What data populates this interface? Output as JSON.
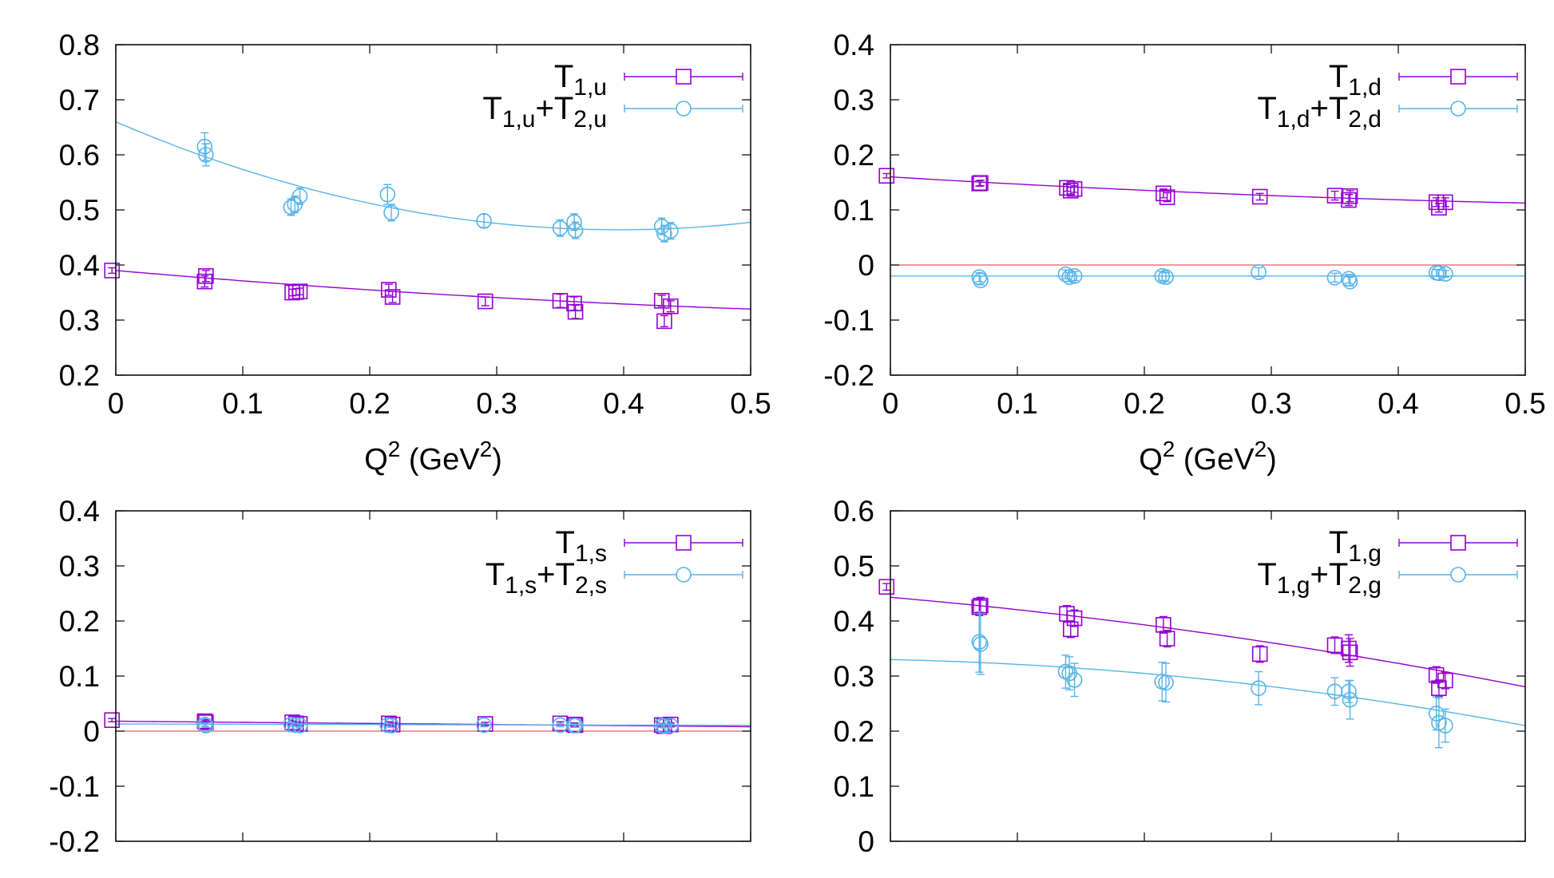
{
  "colors": {
    "t1": "#9400d3",
    "t12": "#56b4e9",
    "zero_line": "#e06060",
    "frame": "#000000"
  },
  "chart_data": [
    {
      "type": "scatter",
      "id": "u",
      "xlim": [
        0,
        0.5
      ],
      "ylim": [
        0.2,
        0.8
      ],
      "yticks": [
        "0.2",
        "0.3",
        "0.4",
        "0.5",
        "0.6",
        "0.7",
        "0.8"
      ],
      "xticks": [
        "0",
        "0.1",
        "0.2",
        "0.3",
        "0.4",
        "0.5"
      ],
      "show_xticks": true,
      "xlabel": {
        "base": "Q",
        "sup1": "2",
        "mid": " (GeV",
        "sup2": "2",
        "end": ")"
      },
      "zero_line": false,
      "legend": [
        {
          "base": "T",
          "sub": "1,u",
          "plus": "",
          "base2": "",
          "sub2": ""
        },
        {
          "base": "T",
          "sub": "1,u",
          "plus": "+",
          "base2": "T",
          "sub2": "2,u"
        }
      ],
      "series": [
        {
          "name": "T1,u",
          "fit": [
            0.39,
            -0.2,
            0.12
          ],
          "points": [
            [
              -0.003,
              0.39,
              0.005
            ],
            [
              0.07,
              0.37,
              0.01
            ],
            [
              0.071,
              0.38,
              0.01
            ],
            [
              0.139,
              0.35,
              0.006
            ],
            [
              0.142,
              0.351,
              0.006
            ],
            [
              0.145,
              0.352,
              0.006
            ],
            [
              0.215,
              0.355,
              0.01
            ],
            [
              0.218,
              0.342,
              0.01
            ],
            [
              0.291,
              0.334,
              0.008
            ],
            [
              0.35,
              0.335,
              0.012
            ],
            [
              0.361,
              0.33,
              0.012
            ],
            [
              0.362,
              0.315,
              0.012
            ],
            [
              0.43,
              0.335,
              0.01
            ],
            [
              0.432,
              0.298,
              0.01
            ],
            [
              0.437,
              0.325,
              0.01
            ]
          ]
        },
        {
          "name": "T1,u+T2,u",
          "fit": [
            0.66,
            -0.99,
            1.25
          ],
          "points": [
            [
              0.07,
              0.615,
              0.025
            ],
            [
              0.071,
              0.6,
              0.02
            ],
            [
              0.138,
              0.505,
              0.015
            ],
            [
              0.141,
              0.51,
              0.015
            ],
            [
              0.145,
              0.525,
              0.015
            ],
            [
              0.214,
              0.528,
              0.018
            ],
            [
              0.217,
              0.495,
              0.015
            ],
            [
              0.29,
              0.48,
              0.012
            ],
            [
              0.35,
              0.467,
              0.015
            ],
            [
              0.361,
              0.478,
              0.015
            ],
            [
              0.362,
              0.463,
              0.015
            ],
            [
              0.43,
              0.47,
              0.015
            ],
            [
              0.432,
              0.457,
              0.015
            ],
            [
              0.437,
              0.462,
              0.015
            ]
          ]
        }
      ]
    },
    {
      "type": "scatter",
      "id": "d",
      "xlim": [
        0,
        0.5
      ],
      "ylim": [
        -0.2,
        0.4
      ],
      "yticks": [
        "-0.2",
        "-0.1",
        "0",
        "0.1",
        "0.2",
        "0.3",
        "0.4"
      ],
      "xticks": [
        "0",
        "0.1",
        "0.2",
        "0.3",
        "0.4",
        "0.5"
      ],
      "show_xticks": true,
      "xlabel": {
        "base": "Q",
        "sup1": "2",
        "mid": " (GeV",
        "sup2": "2",
        "end": ")"
      },
      "zero_line": true,
      "legend": [
        {
          "base": "T",
          "sub": "1,d",
          "plus": "",
          "base2": "",
          "sub2": ""
        },
        {
          "base": "T",
          "sub": "1,d",
          "plus": "+",
          "base2": "T",
          "sub2": "2,d"
        }
      ],
      "series": [
        {
          "name": "T1,d",
          "fit": [
            0.16,
            -0.14,
            0.09
          ],
          "points": [
            [
              -0.003,
              0.162,
              0.004
            ],
            [
              0.07,
              0.148,
              0.005
            ],
            [
              0.071,
              0.149,
              0.005
            ],
            [
              0.139,
              0.14,
              0.006
            ],
            [
              0.142,
              0.135,
              0.006
            ],
            [
              0.145,
              0.138,
              0.006
            ],
            [
              0.215,
              0.13,
              0.008
            ],
            [
              0.218,
              0.123,
              0.008
            ],
            [
              0.291,
              0.124,
              0.006
            ],
            [
              0.35,
              0.126,
              0.008
            ],
            [
              0.361,
              0.118,
              0.01
            ],
            [
              0.362,
              0.125,
              0.01
            ],
            [
              0.43,
              0.114,
              0.008
            ],
            [
              0.432,
              0.104,
              0.008
            ],
            [
              0.437,
              0.114,
              0.008
            ]
          ]
        },
        {
          "name": "T1,d+T2,d",
          "fit": [
            -0.02,
            0,
            0
          ],
          "points": [
            [
              0.07,
              -0.022,
              0.008
            ],
            [
              0.071,
              -0.028,
              0.008
            ],
            [
              0.138,
              -0.017,
              0.008
            ],
            [
              0.141,
              -0.022,
              0.008
            ],
            [
              0.145,
              -0.02,
              0.008
            ],
            [
              0.214,
              -0.02,
              0.008
            ],
            [
              0.217,
              -0.022,
              0.008
            ],
            [
              0.29,
              -0.013,
              0.008
            ],
            [
              0.35,
              -0.023,
              0.008
            ],
            [
              0.361,
              -0.025,
              0.008
            ],
            [
              0.362,
              -0.03,
              0.008
            ],
            [
              0.43,
              -0.014,
              0.006
            ],
            [
              0.432,
              -0.015,
              0.006
            ],
            [
              0.437,
              -0.016,
              0.006
            ]
          ]
        }
      ]
    },
    {
      "type": "scatter",
      "id": "s",
      "xlim": [
        0,
        0.5
      ],
      "ylim": [
        -0.2,
        0.4
      ],
      "yticks": [
        "-0.2",
        "-0.1",
        "0",
        "0.1",
        "0.2",
        "0.3",
        "0.4"
      ],
      "xticks": [],
      "show_xticks": false,
      "xlabel": null,
      "zero_line": true,
      "legend": [
        {
          "base": "T",
          "sub": "1,s",
          "plus": "",
          "base2": "",
          "sub2": ""
        },
        {
          "base": "T",
          "sub": "1,s",
          "plus": "+",
          "base2": "T",
          "sub2": "2,s"
        }
      ],
      "series": [
        {
          "name": "T1,s",
          "fit": [
            0.018,
            -0.02,
            0
          ],
          "points": [
            [
              -0.003,
              0.02,
              0.003
            ],
            [
              0.07,
              0.018,
              0.003
            ],
            [
              0.071,
              0.016,
              0.003
            ],
            [
              0.139,
              0.016,
              0.003
            ],
            [
              0.142,
              0.014,
              0.003
            ],
            [
              0.145,
              0.013,
              0.003
            ],
            [
              0.215,
              0.014,
              0.003
            ],
            [
              0.218,
              0.012,
              0.003
            ],
            [
              0.291,
              0.013,
              0.003
            ],
            [
              0.35,
              0.014,
              0.003
            ],
            [
              0.361,
              0.012,
              0.003
            ],
            [
              0.362,
              0.011,
              0.003
            ],
            [
              0.43,
              0.011,
              0.003
            ],
            [
              0.432,
              0.009,
              0.003
            ],
            [
              0.437,
              0.012,
              0.003
            ]
          ]
        },
        {
          "name": "T1,s+T2,s",
          "fit": [
            0.013,
            -0.005,
            0
          ],
          "points": [
            [
              0.07,
              0.012,
              0.003
            ],
            [
              0.071,
              0.01,
              0.003
            ],
            [
              0.138,
              0.012,
              0.003
            ],
            [
              0.141,
              0.011,
              0.003
            ],
            [
              0.145,
              0.01,
              0.003
            ],
            [
              0.214,
              0.011,
              0.003
            ],
            [
              0.217,
              0.01,
              0.003
            ],
            [
              0.29,
              0.011,
              0.003
            ],
            [
              0.35,
              0.011,
              0.003
            ],
            [
              0.361,
              0.01,
              0.003
            ],
            [
              0.362,
              0.01,
              0.003
            ],
            [
              0.43,
              0.01,
              0.003
            ],
            [
              0.432,
              0.009,
              0.003
            ],
            [
              0.437,
              0.01,
              0.003
            ]
          ]
        }
      ]
    },
    {
      "type": "scatter",
      "id": "g",
      "xlim": [
        0,
        0.5
      ],
      "ylim": [
        0,
        0.6
      ],
      "yticks": [
        "0",
        "0.1",
        "0.2",
        "0.3",
        "0.4",
        "0.5",
        "0.6"
      ],
      "xticks": [],
      "show_xticks": false,
      "xlabel": null,
      "zero_line": false,
      "legend": [
        {
          "base": "T",
          "sub": "1,g",
          "plus": "",
          "base2": "",
          "sub2": ""
        },
        {
          "base": "T",
          "sub": "1,g",
          "plus": "+",
          "base2": "T",
          "sub2": "2,g"
        }
      ],
      "series": [
        {
          "name": "T1,g",
          "fit": [
            0.443,
            -0.2,
            -0.25
          ],
          "points": [
            [
              -0.003,
              0.462,
              0.006
            ],
            [
              0.07,
              0.425,
              0.015
            ],
            [
              0.071,
              0.428,
              0.015
            ],
            [
              0.139,
              0.413,
              0.015
            ],
            [
              0.142,
              0.385,
              0.015
            ],
            [
              0.145,
              0.405,
              0.015
            ],
            [
              0.215,
              0.393,
              0.015
            ],
            [
              0.218,
              0.368,
              0.015
            ],
            [
              0.291,
              0.34,
              0.015
            ],
            [
              0.35,
              0.356,
              0.015
            ],
            [
              0.361,
              0.35,
              0.025
            ],
            [
              0.362,
              0.343,
              0.025
            ],
            [
              0.43,
              0.302,
              0.015
            ],
            [
              0.432,
              0.278,
              0.015
            ],
            [
              0.437,
              0.292,
              0.015
            ]
          ]
        },
        {
          "name": "T1,g+T2,g",
          "fit": [
            0.33,
            -0.05,
            -0.38
          ],
          "points": [
            [
              0.07,
              0.362,
              0.055
            ],
            [
              0.071,
              0.358,
              0.055
            ],
            [
              0.138,
              0.308,
              0.03
            ],
            [
              0.141,
              0.305,
              0.03
            ],
            [
              0.145,
              0.293,
              0.03
            ],
            [
              0.214,
              0.29,
              0.035
            ],
            [
              0.217,
              0.288,
              0.035
            ],
            [
              0.29,
              0.278,
              0.03
            ],
            [
              0.35,
              0.272,
              0.025
            ],
            [
              0.361,
              0.272,
              0.02
            ],
            [
              0.362,
              0.257,
              0.035
            ],
            [
              0.43,
              0.232,
              0.03
            ],
            [
              0.432,
              0.215,
              0.045
            ],
            [
              0.437,
              0.21,
              0.03
            ]
          ]
        }
      ]
    }
  ]
}
